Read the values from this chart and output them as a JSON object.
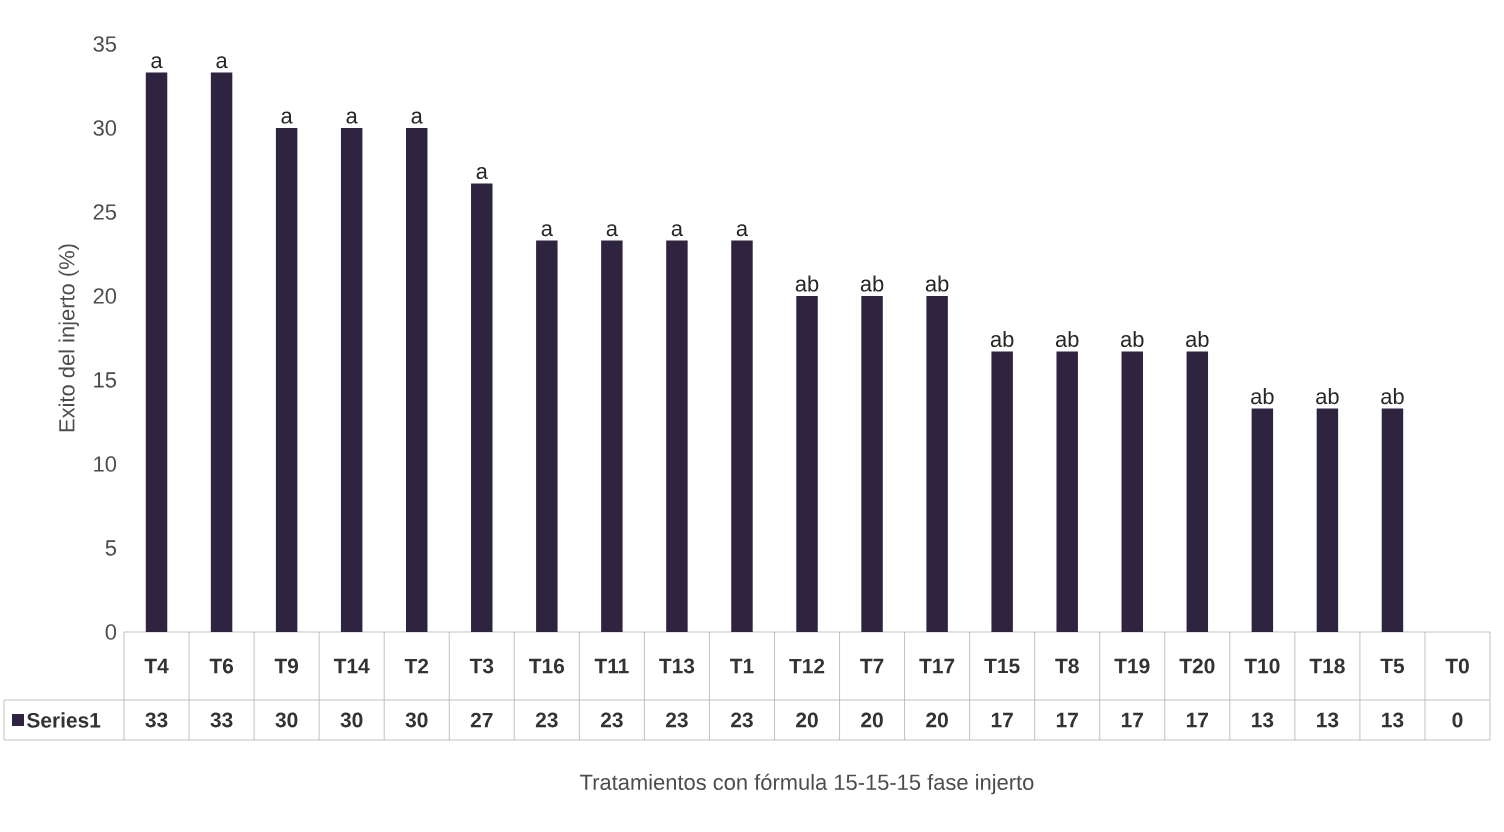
{
  "chart_data": {
    "type": "bar",
    "xlabel": "Tratamientos con fórmula 15-15-15 fase injerto",
    "ylabel": "Exito del injerto (%)",
    "categories": [
      "T4",
      "T6",
      "T9",
      "T14",
      "T2",
      "T3",
      "T16",
      "T11",
      "T13",
      "T1",
      "T12",
      "T7",
      "T17",
      "T15",
      "T8",
      "T19",
      "T20",
      "T10",
      "T18",
      "T5",
      "T0"
    ],
    "series": [
      {
        "name": "Series1",
        "color": "#2e2440",
        "values": [
          33.3,
          33.3,
          30,
          30,
          30,
          26.7,
          23.3,
          23.3,
          23.3,
          23.3,
          20,
          20,
          20,
          16.7,
          16.7,
          16.7,
          16.7,
          13.3,
          13.3,
          13.3,
          0
        ],
        "value_labels": [
          "33",
          "33",
          "30",
          "30",
          "30",
          "27",
          "23",
          "23",
          "23",
          "23",
          "20",
          "20",
          "20",
          "17",
          "17",
          "17",
          "17",
          "13",
          "13",
          "13",
          "0"
        ]
      }
    ],
    "ylim": [
      0,
      35
    ],
    "yticks": [
      0,
      5,
      10,
      15,
      20,
      25,
      30,
      35
    ],
    "legend": "bottom",
    "annotations": [
      {
        "text": "a",
        "x": "T4",
        "y": 33.3
      },
      {
        "text": "a",
        "x": "T6",
        "y": 33.3
      },
      {
        "text": "a",
        "x": "T9",
        "y": 30
      },
      {
        "text": "a",
        "x": "T14",
        "y": 30
      },
      {
        "text": "a",
        "x": "T2",
        "y": 30
      },
      {
        "text": "a",
        "x": "T3",
        "y": 26.7
      },
      {
        "text": "a",
        "x": "T16",
        "y": 23.3
      },
      {
        "text": "a",
        "x": "T11",
        "y": 23.3
      },
      {
        "text": "a",
        "x": "T13",
        "y": 23.3
      },
      {
        "text": "a",
        "x": "T1",
        "y": 23.3
      },
      {
        "text": "ab",
        "x": "T12",
        "y": 20
      },
      {
        "text": "ab",
        "x": "T7",
        "y": 20
      },
      {
        "text": "ab",
        "x": "T17",
        "y": 20
      },
      {
        "text": "ab",
        "x": "T15",
        "y": 16.7
      },
      {
        "text": "ab",
        "x": "T8",
        "y": 16.7
      },
      {
        "text": "ab",
        "x": "T19",
        "y": 16.7
      },
      {
        "text": "ab",
        "x": "T20",
        "y": 16.7
      },
      {
        "text": "ab",
        "x": "T10",
        "y": 13.3
      },
      {
        "text": "ab",
        "x": "T18",
        "y": 13.3
      },
      {
        "text": "ab",
        "x": "T5",
        "y": 13.3
      }
    ]
  }
}
